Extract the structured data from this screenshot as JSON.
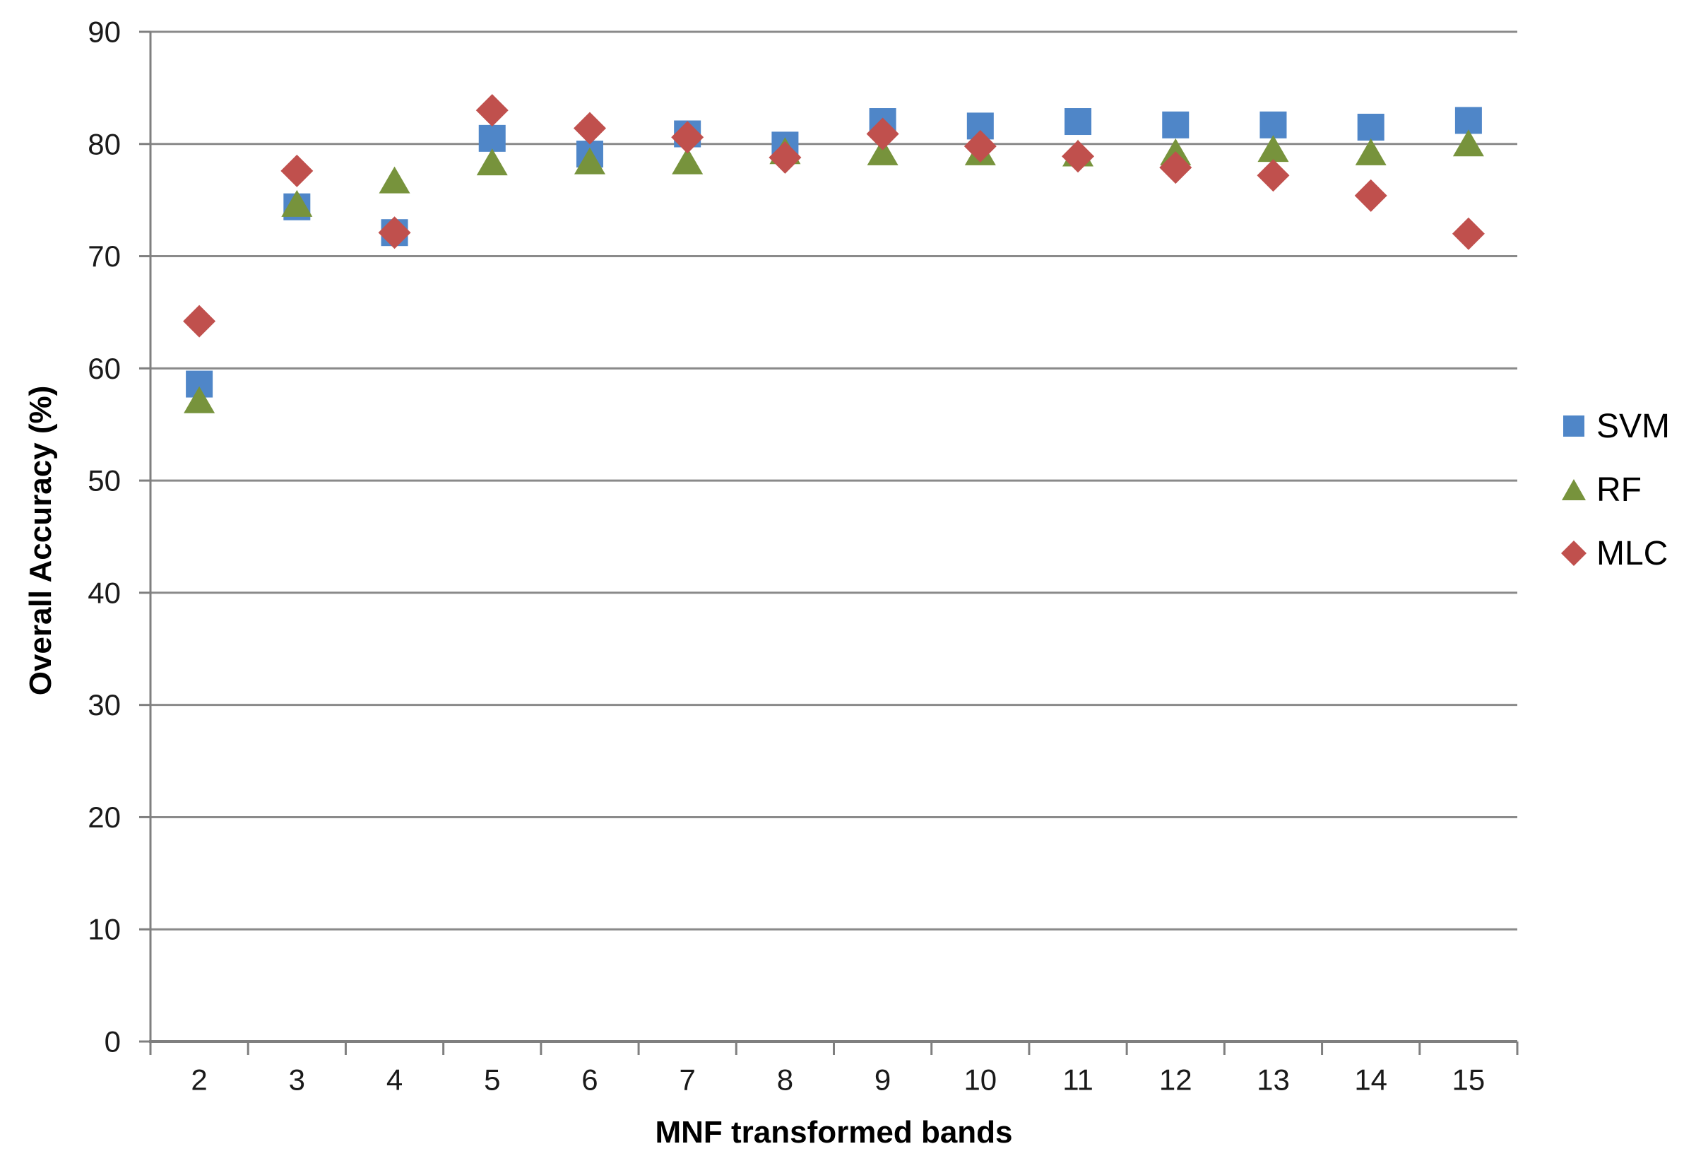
{
  "chart_data": {
    "type": "scatter",
    "title": "",
    "xlabel": "MNF transformed bands",
    "ylabel": "Overall Accuracy (%)",
    "categories": [
      2,
      3,
      4,
      5,
      6,
      7,
      8,
      9,
      10,
      11,
      12,
      13,
      14,
      15
    ],
    "y_ticks": [
      0,
      10,
      20,
      30,
      40,
      50,
      60,
      70,
      80,
      90
    ],
    "ylim": [
      0,
      90
    ],
    "grid": "horizontal",
    "grid_color": "#8a8a8a",
    "axis_color": "#7f7f7f",
    "legend_position": "right",
    "series": [
      {
        "name": "SVM",
        "marker": "square",
        "color": "#4f86c8",
        "values": [
          58.6,
          74.4,
          72.1,
          80.5,
          79.1,
          80.9,
          79.9,
          82.0,
          81.6,
          82.0,
          81.7,
          81.7,
          81.5,
          82.1
        ]
      },
      {
        "name": "RF",
        "marker": "triangle",
        "color": "#77933c",
        "values": [
          57.2,
          74.7,
          76.8,
          78.4,
          78.5,
          78.5,
          79.4,
          79.3,
          79.3,
          79.2,
          79.3,
          79.6,
          79.3,
          80.1
        ]
      },
      {
        "name": "MLC",
        "marker": "diamond",
        "color": "#c0504d",
        "values": [
          64.2,
          77.6,
          72.1,
          83.0,
          81.4,
          80.6,
          78.8,
          80.9,
          79.8,
          78.9,
          77.9,
          77.2,
          75.4,
          72.0
        ]
      }
    ]
  }
}
